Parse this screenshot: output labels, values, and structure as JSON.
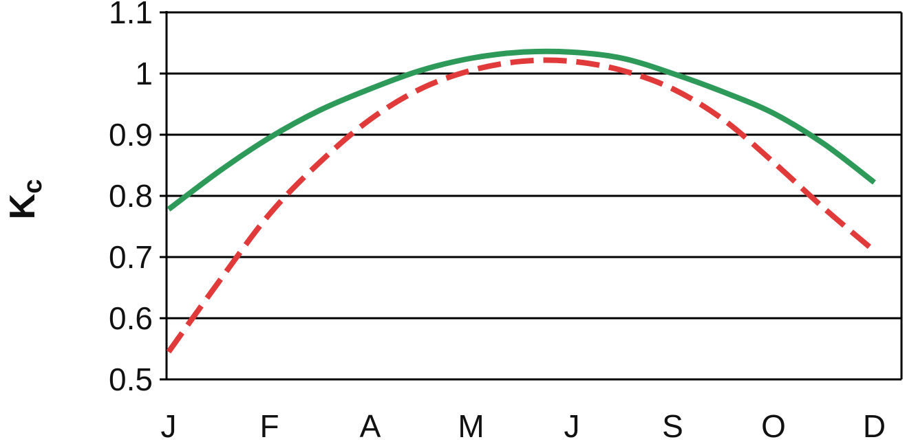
{
  "chart_data": {
    "type": "line",
    "ylabel": "K",
    "ylabel_subscript": "c",
    "xlabel": "",
    "ylim": [
      0.5,
      1.1
    ],
    "yticks": [
      0.5,
      0.6,
      0.7,
      0.8,
      0.9,
      1.0,
      1.1
    ],
    "ytick_labels": [
      "0.5",
      "0.6",
      "0.7",
      "0.8",
      "0.9",
      "1",
      "1.1"
    ],
    "grid": true,
    "x_tick_labels": [
      "J",
      "F",
      "A",
      "M",
      "J",
      "S",
      "O",
      "D"
    ],
    "x_tick_positions": [
      0,
      1,
      2,
      3,
      4,
      5,
      6,
      7
    ],
    "xlim": [
      0,
      7.25
    ],
    "series": [
      {
        "color": "#2e9a5a",
        "style": "solid",
        "x": [
          0,
          0.5,
          1,
          1.5,
          2,
          2.5,
          3,
          3.5,
          4,
          4.5,
          5,
          5.5,
          6,
          6.5,
          7
        ],
        "y": [
          0.778,
          0.84,
          0.895,
          0.94,
          0.975,
          1.005,
          1.025,
          1.035,
          1.035,
          1.025,
          1.0,
          0.97,
          0.935,
          0.885,
          0.822
        ]
      },
      {
        "color": "#e03a3a",
        "style": "dashed",
        "x": [
          0,
          0.5,
          1,
          1.5,
          2,
          2.5,
          3,
          3.5,
          4,
          4.5,
          5,
          5.5,
          6,
          6.5,
          7
        ],
        "y": [
          0.545,
          0.66,
          0.77,
          0.855,
          0.925,
          0.975,
          1.005,
          1.02,
          1.02,
          1.005,
          0.975,
          0.925,
          0.855,
          0.78,
          0.71
        ]
      }
    ]
  }
}
